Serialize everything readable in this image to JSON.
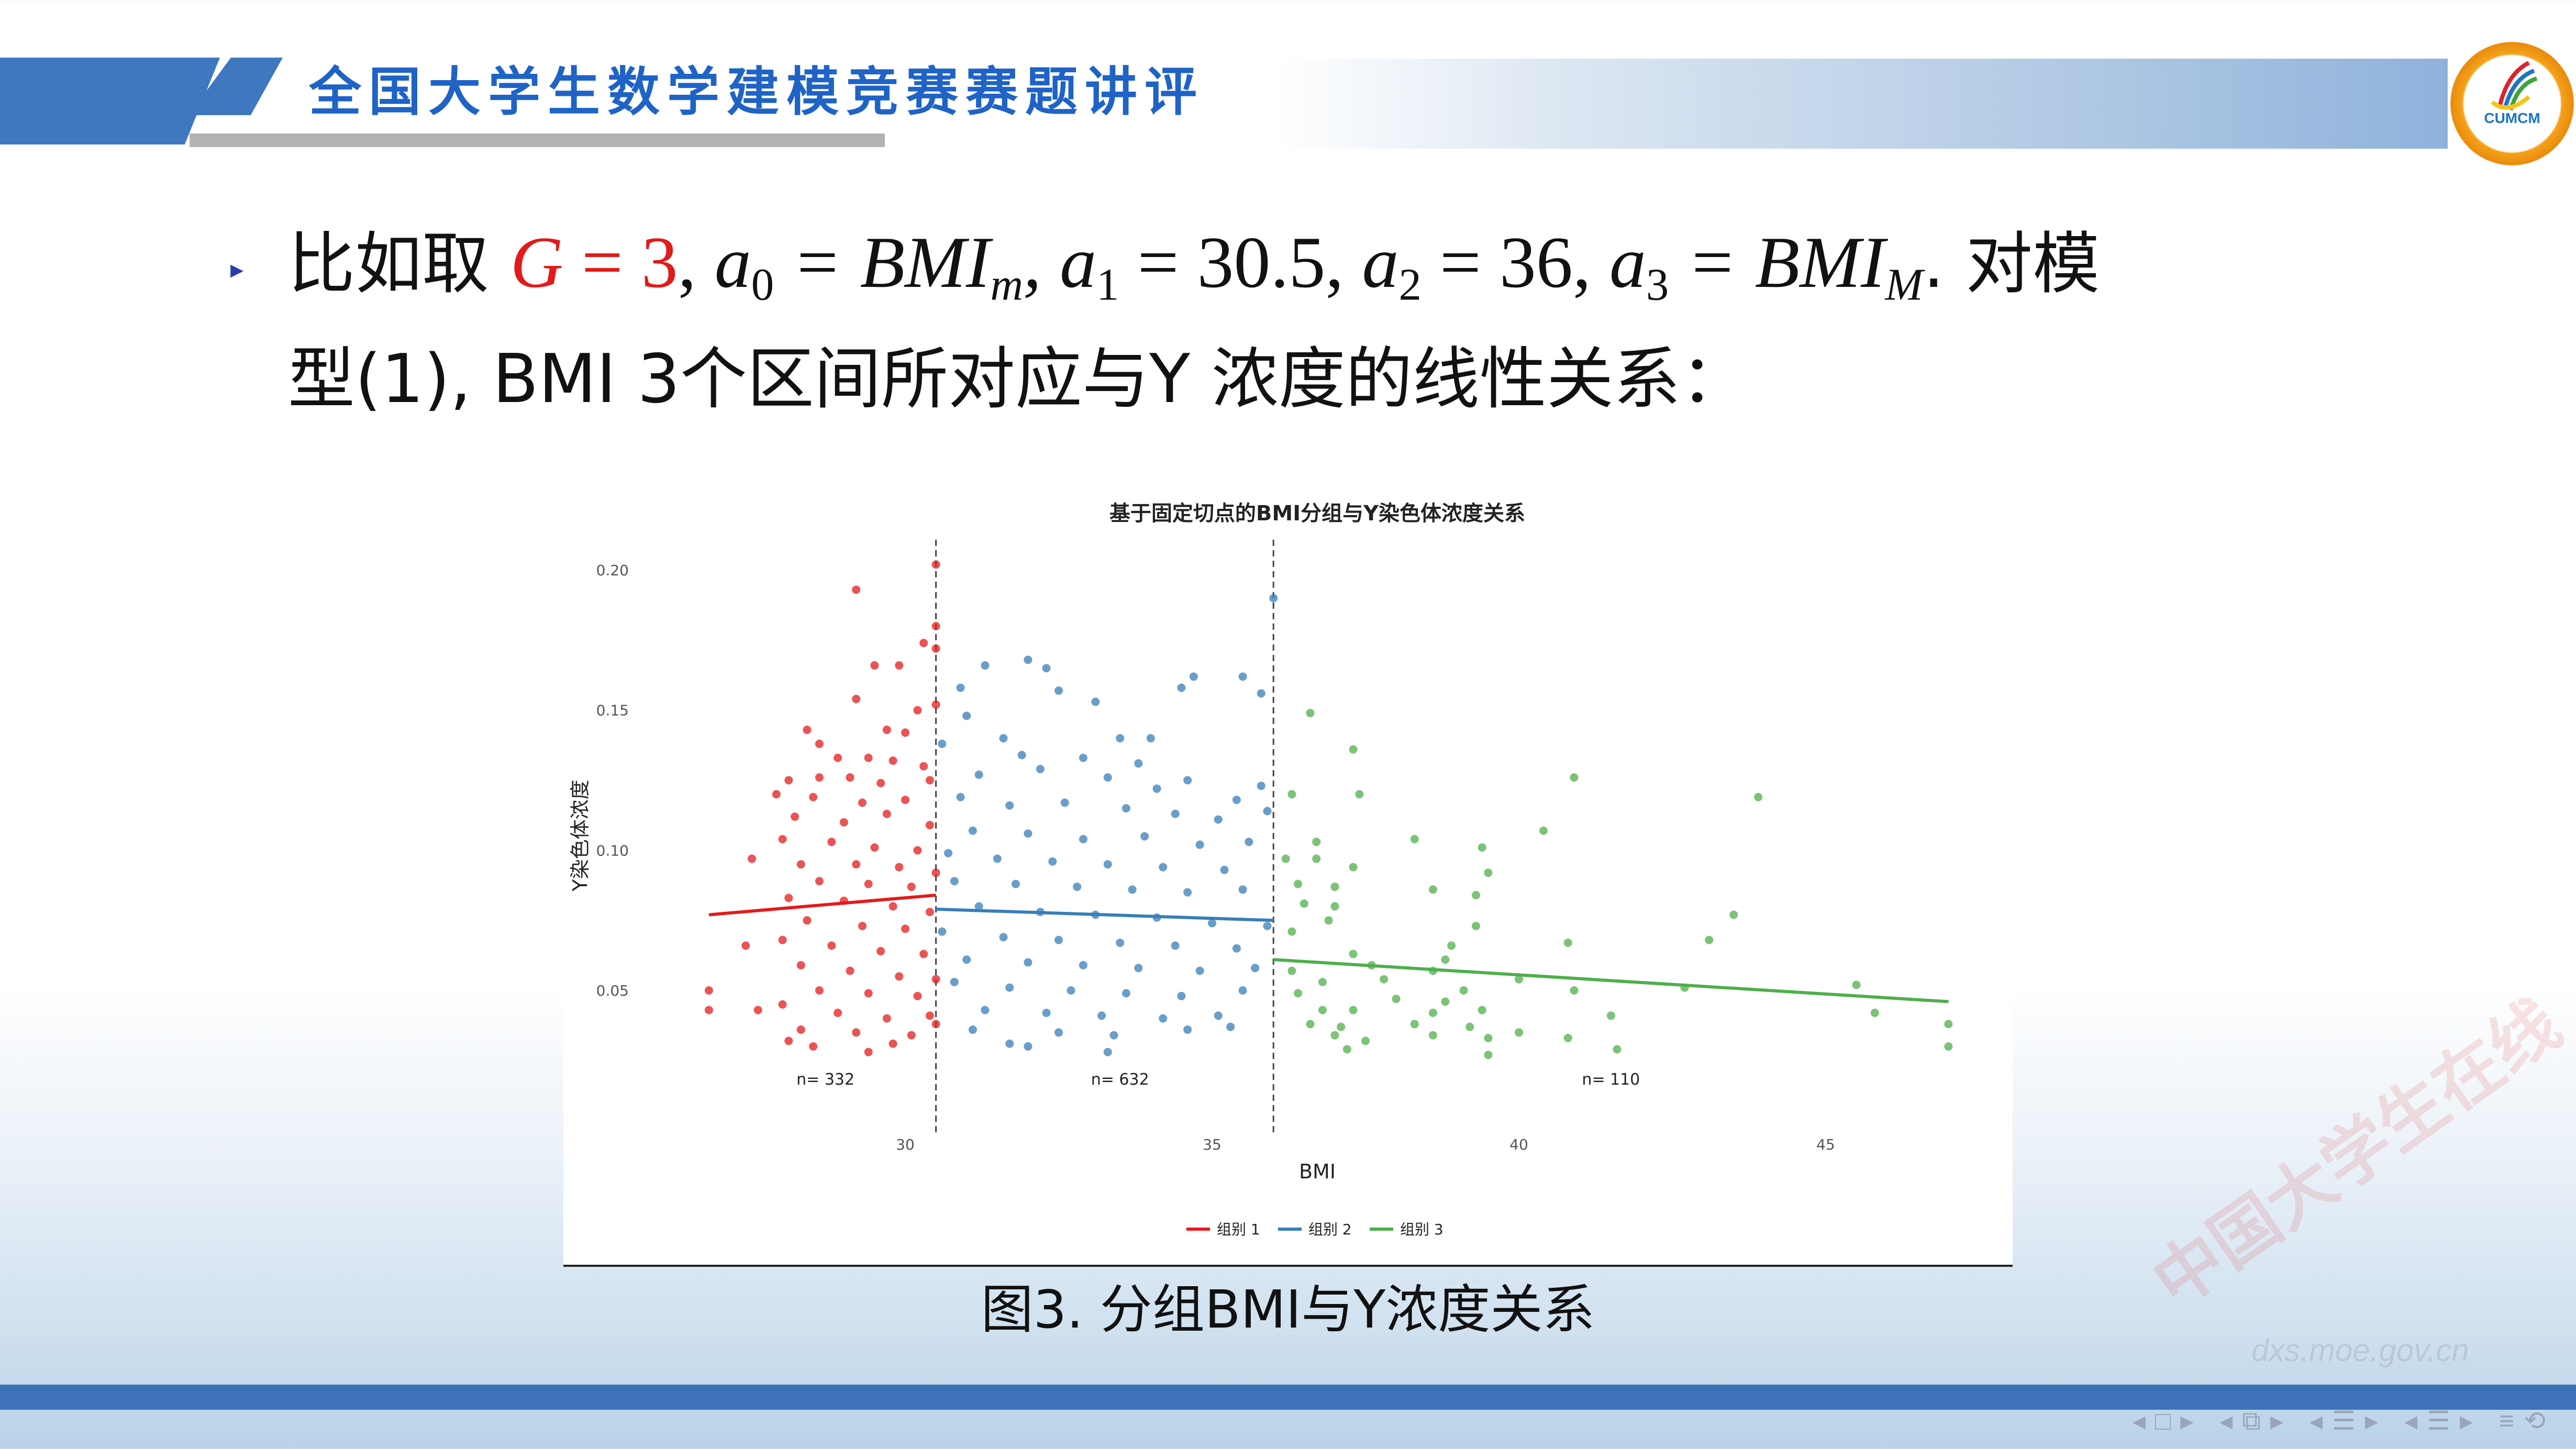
{
  "header": {
    "title": "全国大学生数学建模竞赛赛题讲评",
    "logo_text": "CUMCM"
  },
  "bullet": {
    "marker": "▸",
    "line1": {
      "prefix": "比如取 ",
      "G": "G",
      "eq3": " = 3",
      "a0": "a",
      "a0_sub": "0",
      "a0_val": " = BMI",
      "a0_val_sub": "m",
      "a1": ", a",
      "a1_sub": "1",
      "a1_val": " = 30.5, ",
      "a2": "a",
      "a2_sub": "2",
      "a2_val": " = 36, ",
      "a3": "a",
      "a3_sub": "3",
      "a3_val": " = BMI",
      "a3_val_sub": "M",
      "suffix": ". 对模"
    },
    "line2": "型(1), BMI 3个区间所对应与Y 浓度的线性关系："
  },
  "chart_data": {
    "type": "scatter",
    "title": "基于固定切点的BMI分组与Y染色体浓度关系",
    "xlabel": "BMI",
    "ylabel": "Y染色体浓度",
    "xlim": [
      26.3,
      47.6
    ],
    "ylim": [
      0.015,
      0.21
    ],
    "xticks": [
      "30",
      "35",
      "40",
      "45"
    ],
    "xtick_values": [
      30,
      35,
      40,
      45
    ],
    "yticks": [
      "0.05",
      "0.10",
      "0.15",
      "0.20"
    ],
    "ytick_values": [
      0.05,
      0.1,
      0.15,
      0.2
    ],
    "cutpoints": [
      30.5,
      36
    ],
    "legend_position": "bottom",
    "grid": false,
    "series": [
      {
        "name": "组别 1",
        "color": "#e41a1c",
        "n_label": "n= 332",
        "n_label_x": 28.7,
        "fit": [
          [
            26.8,
            0.077
          ],
          [
            30.5,
            0.084
          ]
        ],
        "points": [
          [
            29.2,
            0.193
          ],
          [
            30.5,
            0.202
          ],
          [
            30.5,
            0.18
          ],
          [
            30.5,
            0.172
          ],
          [
            30.3,
            0.174
          ],
          [
            29.5,
            0.166
          ],
          [
            29.9,
            0.166
          ],
          [
            29.2,
            0.154
          ],
          [
            30.5,
            0.152
          ],
          [
            30.2,
            0.15
          ],
          [
            29.7,
            0.143
          ],
          [
            28.4,
            0.143
          ],
          [
            28.6,
            0.138
          ],
          [
            30.0,
            0.142
          ],
          [
            28.9,
            0.133
          ],
          [
            29.4,
            0.133
          ],
          [
            29.8,
            0.132
          ],
          [
            30.3,
            0.13
          ],
          [
            28.1,
            0.125
          ],
          [
            28.6,
            0.126
          ],
          [
            29.1,
            0.126
          ],
          [
            29.6,
            0.124
          ],
          [
            30.4,
            0.125
          ],
          [
            27.9,
            0.12
          ],
          [
            28.5,
            0.119
          ],
          [
            29.3,
            0.117
          ],
          [
            30.0,
            0.118
          ],
          [
            28.2,
            0.112
          ],
          [
            29.0,
            0.11
          ],
          [
            29.7,
            0.113
          ],
          [
            30.4,
            0.109
          ],
          [
            28.0,
            0.104
          ],
          [
            28.8,
            0.103
          ],
          [
            29.5,
            0.101
          ],
          [
            30.2,
            0.1
          ],
          [
            27.5,
            0.097
          ],
          [
            28.3,
            0.095
          ],
          [
            29.2,
            0.095
          ],
          [
            29.9,
            0.094
          ],
          [
            30.5,
            0.092
          ],
          [
            28.6,
            0.089
          ],
          [
            29.4,
            0.088
          ],
          [
            30.1,
            0.087
          ],
          [
            28.1,
            0.083
          ],
          [
            29.0,
            0.082
          ],
          [
            29.8,
            0.08
          ],
          [
            30.4,
            0.078
          ],
          [
            28.4,
            0.075
          ],
          [
            29.3,
            0.073
          ],
          [
            30.0,
            0.072
          ],
          [
            28.0,
            0.068
          ],
          [
            28.8,
            0.066
          ],
          [
            29.6,
            0.064
          ],
          [
            30.3,
            0.063
          ],
          [
            27.4,
            0.066
          ],
          [
            28.3,
            0.059
          ],
          [
            29.1,
            0.057
          ],
          [
            29.9,
            0.055
          ],
          [
            30.5,
            0.054
          ],
          [
            28.6,
            0.05
          ],
          [
            29.4,
            0.049
          ],
          [
            30.2,
            0.048
          ],
          [
            26.8,
            0.05
          ],
          [
            26.8,
            0.043
          ],
          [
            27.6,
            0.043
          ],
          [
            28.0,
            0.045
          ],
          [
            28.9,
            0.042
          ],
          [
            29.7,
            0.04
          ],
          [
            30.4,
            0.041
          ],
          [
            28.3,
            0.036
          ],
          [
            29.2,
            0.035
          ],
          [
            30.1,
            0.034
          ],
          [
            28.1,
            0.032
          ],
          [
            29.8,
            0.031
          ],
          [
            28.5,
            0.03
          ],
          [
            29.4,
            0.028
          ],
          [
            30.5,
            0.038
          ]
        ]
      },
      {
        "name": "组别 2",
        "color": "#377eb8",
        "n_label": "n= 632",
        "n_label_x": 33.5,
        "fit": [
          [
            30.5,
            0.079
          ],
          [
            36,
            0.075
          ]
        ],
        "points": [
          [
            36.0,
            0.19
          ],
          [
            32.0,
            0.168
          ],
          [
            31.3,
            0.166
          ],
          [
            32.3,
            0.165
          ],
          [
            35.5,
            0.162
          ],
          [
            35.8,
            0.156
          ],
          [
            34.5,
            0.158
          ],
          [
            34.7,
            0.162
          ],
          [
            32.5,
            0.157
          ],
          [
            33.1,
            0.153
          ],
          [
            30.9,
            0.158
          ],
          [
            31.0,
            0.148
          ],
          [
            31.6,
            0.14
          ],
          [
            33.5,
            0.14
          ],
          [
            34.0,
            0.14
          ],
          [
            30.6,
            0.138
          ],
          [
            31.9,
            0.134
          ],
          [
            32.9,
            0.133
          ],
          [
            33.8,
            0.131
          ],
          [
            34.6,
            0.125
          ],
          [
            35.8,
            0.123
          ],
          [
            31.2,
            0.127
          ],
          [
            32.2,
            0.129
          ],
          [
            33.3,
            0.126
          ],
          [
            34.1,
            0.122
          ],
          [
            35.4,
            0.118
          ],
          [
            30.9,
            0.119
          ],
          [
            31.7,
            0.116
          ],
          [
            32.6,
            0.117
          ],
          [
            33.6,
            0.115
          ],
          [
            34.4,
            0.113
          ],
          [
            35.1,
            0.111
          ],
          [
            35.9,
            0.114
          ],
          [
            31.1,
            0.107
          ],
          [
            32.0,
            0.106
          ],
          [
            32.9,
            0.104
          ],
          [
            33.9,
            0.105
          ],
          [
            34.8,
            0.102
          ],
          [
            35.6,
            0.103
          ],
          [
            30.7,
            0.099
          ],
          [
            31.5,
            0.097
          ],
          [
            32.4,
            0.096
          ],
          [
            33.3,
            0.095
          ],
          [
            34.2,
            0.094
          ],
          [
            35.2,
            0.093
          ],
          [
            30.8,
            0.089
          ],
          [
            31.8,
            0.088
          ],
          [
            32.8,
            0.087
          ],
          [
            33.7,
            0.086
          ],
          [
            34.6,
            0.085
          ],
          [
            35.5,
            0.086
          ],
          [
            31.2,
            0.08
          ],
          [
            32.2,
            0.078
          ],
          [
            33.1,
            0.077
          ],
          [
            34.1,
            0.076
          ],
          [
            35.0,
            0.074
          ],
          [
            35.9,
            0.073
          ],
          [
            30.6,
            0.071
          ],
          [
            31.6,
            0.069
          ],
          [
            32.5,
            0.068
          ],
          [
            33.5,
            0.067
          ],
          [
            34.4,
            0.066
          ],
          [
            35.4,
            0.065
          ],
          [
            31.0,
            0.061
          ],
          [
            32.0,
            0.06
          ],
          [
            32.9,
            0.059
          ],
          [
            33.8,
            0.058
          ],
          [
            34.8,
            0.057
          ],
          [
            35.7,
            0.058
          ],
          [
            30.8,
            0.053
          ],
          [
            31.7,
            0.051
          ],
          [
            32.7,
            0.05
          ],
          [
            33.6,
            0.049
          ],
          [
            34.5,
            0.048
          ],
          [
            35.5,
            0.05
          ],
          [
            31.3,
            0.043
          ],
          [
            32.3,
            0.042
          ],
          [
            33.2,
            0.041
          ],
          [
            34.2,
            0.04
          ],
          [
            35.1,
            0.041
          ],
          [
            31.1,
            0.036
          ],
          [
            32.5,
            0.035
          ],
          [
            33.4,
            0.034
          ],
          [
            34.6,
            0.036
          ],
          [
            31.7,
            0.031
          ],
          [
            32.0,
            0.03
          ],
          [
            33.3,
            0.028
          ],
          [
            35.3,
            0.037
          ]
        ]
      },
      {
        "name": "组别 3",
        "color": "#4daf4a",
        "n_label": "n= 110",
        "n_label_x": 41.5,
        "fit": [
          [
            36,
            0.061
          ],
          [
            47,
            0.046
          ]
        ],
        "points": [
          [
            36.6,
            0.149
          ],
          [
            37.3,
            0.136
          ],
          [
            37.4,
            0.12
          ],
          [
            40.9,
            0.126
          ],
          [
            43.9,
            0.119
          ],
          [
            40.4,
            0.107
          ],
          [
            38.3,
            0.104
          ],
          [
            39.4,
            0.101
          ],
          [
            36.3,
            0.12
          ],
          [
            36.7,
            0.103
          ],
          [
            36.2,
            0.097
          ],
          [
            36.7,
            0.097
          ],
          [
            37.3,
            0.094
          ],
          [
            39.5,
            0.092
          ],
          [
            36.4,
            0.088
          ],
          [
            37.0,
            0.087
          ],
          [
            38.6,
            0.086
          ],
          [
            39.3,
            0.084
          ],
          [
            36.5,
            0.081
          ],
          [
            37.0,
            0.08
          ],
          [
            36.9,
            0.075
          ],
          [
            39.3,
            0.073
          ],
          [
            36.3,
            0.071
          ],
          [
            43.5,
            0.077
          ],
          [
            38.9,
            0.066
          ],
          [
            43.1,
            0.068
          ],
          [
            40.8,
            0.067
          ],
          [
            37.3,
            0.063
          ],
          [
            38.8,
            0.061
          ],
          [
            36.3,
            0.057
          ],
          [
            37.6,
            0.059
          ],
          [
            38.6,
            0.057
          ],
          [
            40.0,
            0.054
          ],
          [
            36.8,
            0.053
          ],
          [
            37.8,
            0.054
          ],
          [
            39.1,
            0.05
          ],
          [
            40.9,
            0.05
          ],
          [
            42.7,
            0.051
          ],
          [
            45.5,
            0.052
          ],
          [
            36.4,
            0.049
          ],
          [
            38.0,
            0.047
          ],
          [
            38.8,
            0.046
          ],
          [
            36.8,
            0.043
          ],
          [
            37.3,
            0.043
          ],
          [
            38.6,
            0.042
          ],
          [
            39.4,
            0.043
          ],
          [
            45.8,
            0.042
          ],
          [
            41.5,
            0.041
          ],
          [
            36.6,
            0.038
          ],
          [
            37.1,
            0.037
          ],
          [
            38.3,
            0.038
          ],
          [
            39.2,
            0.037
          ],
          [
            40.0,
            0.035
          ],
          [
            37.0,
            0.034
          ],
          [
            37.5,
            0.032
          ],
          [
            38.6,
            0.034
          ],
          [
            39.5,
            0.033
          ],
          [
            40.8,
            0.033
          ],
          [
            37.2,
            0.029
          ],
          [
            39.5,
            0.027
          ],
          [
            47.0,
            0.038
          ],
          [
            47.0,
            0.03
          ],
          [
            41.6,
            0.029
          ]
        ]
      }
    ]
  },
  "caption": "图3. 分组BMI与Y浓度关系",
  "watermark": {
    "text": "中国大学生在线",
    "url_text": "dxs.moe.gov.cn"
  },
  "colors": {
    "header_blue": "#3f78c0",
    "title_blue": "#1f63c6",
    "highlight_red": "#e21a1a",
    "bottom_bar": "#3d72b8"
  }
}
